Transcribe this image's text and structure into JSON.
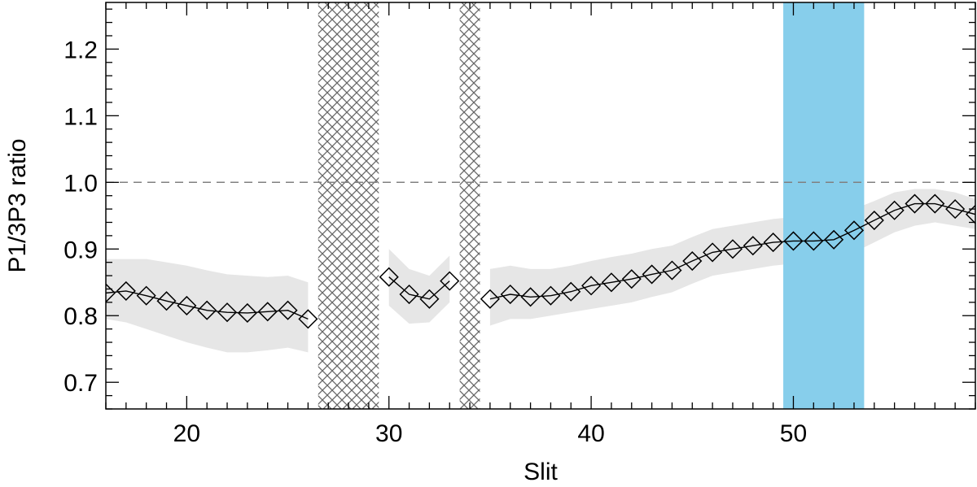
{
  "chart_data": {
    "type": "line",
    "xlabel": "Slit",
    "ylabel": "P1/3P3 ratio",
    "xlim": [
      16,
      59
    ],
    "ylim": [
      0.66,
      1.27
    ],
    "xticks": [
      20,
      30,
      40,
      50
    ],
    "yticks": [
      0.7,
      0.8,
      0.9,
      1.0,
      1.1,
      1.2
    ],
    "ytick_labels": [
      "0.7",
      "0.8",
      "0.9",
      "1.0",
      "1.1",
      "1.2"
    ],
    "reference_line": {
      "y": 1.0,
      "style": "dashed"
    },
    "hatched_regions": [
      [
        26.5,
        29.5
      ],
      [
        33.5,
        34.5
      ]
    ],
    "highlight_region": {
      "x": [
        49.5,
        53.5
      ],
      "color": "#87ceeb"
    },
    "series": [
      {
        "segment": 1,
        "x": [
          16,
          17,
          18,
          19,
          20,
          21,
          22,
          23,
          24,
          25,
          26
        ],
        "y": [
          0.834,
          0.837,
          0.83,
          0.822,
          0.815,
          0.808,
          0.805,
          0.804,
          0.806,
          0.808,
          0.795
        ],
        "lower": [
          0.795,
          0.79,
          0.78,
          0.77,
          0.76,
          0.752,
          0.745,
          0.745,
          0.748,
          0.752,
          0.745
        ],
        "upper": [
          0.885,
          0.885,
          0.885,
          0.88,
          0.875,
          0.868,
          0.862,
          0.86,
          0.858,
          0.86,
          0.85
        ]
      },
      {
        "segment": 2,
        "x": [
          30,
          31,
          32,
          33
        ],
        "y": [
          0.858,
          0.832,
          0.825,
          0.852
        ],
        "lower": [
          0.815,
          0.788,
          0.79,
          0.82
        ],
        "upper": [
          0.9,
          0.87,
          0.86,
          0.89
        ]
      },
      {
        "segment": 3,
        "x": [
          35,
          36,
          37,
          38,
          39,
          40,
          41,
          42,
          43,
          44,
          45,
          46,
          47,
          48,
          49,
          50,
          51,
          52,
          53,
          54,
          55,
          56,
          57,
          58,
          59
        ],
        "y": [
          0.825,
          0.832,
          0.828,
          0.83,
          0.836,
          0.845,
          0.85,
          0.855,
          0.862,
          0.868,
          0.882,
          0.895,
          0.9,
          0.905,
          0.91,
          0.912,
          0.912,
          0.914,
          0.928,
          0.943,
          0.958,
          0.968,
          0.968,
          0.96,
          0.952
        ],
        "lower": [
          0.785,
          0.795,
          0.795,
          0.8,
          0.805,
          0.81,
          0.815,
          0.82,
          0.828,
          0.835,
          0.848,
          0.86,
          0.865,
          0.87,
          0.875,
          0.878,
          0.878,
          0.88,
          0.895,
          0.91,
          0.925,
          0.935,
          0.94,
          0.935,
          0.93
        ],
        "upper": [
          0.87,
          0.875,
          0.87,
          0.87,
          0.875,
          0.882,
          0.888,
          0.893,
          0.9,
          0.905,
          0.918,
          0.93,
          0.935,
          0.94,
          0.945,
          0.948,
          0.948,
          0.95,
          0.96,
          0.972,
          0.985,
          0.99,
          0.99,
          0.985,
          0.975
        ]
      }
    ],
    "colors": {
      "band": "#e6e6e6",
      "highlight": "#87ceeb",
      "hatch": "#666666",
      "line": "#000000",
      "reference": "#808080"
    }
  }
}
